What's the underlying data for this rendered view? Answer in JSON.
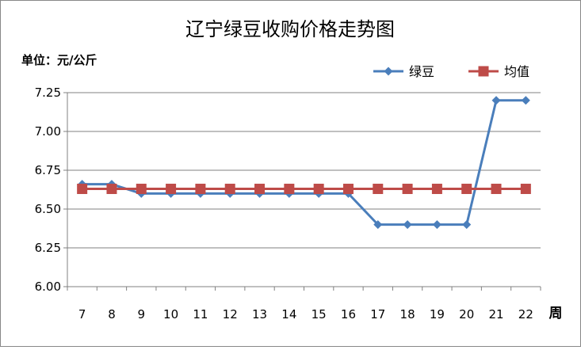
{
  "chart_data": {
    "type": "line",
    "title": "辽宁绿豆收购价格走势图",
    "unit_label": "单位：元/公斤",
    "x_unit_label": "周",
    "categories": [
      "7",
      "8",
      "9",
      "10",
      "11",
      "12",
      "13",
      "14",
      "15",
      "16",
      "17",
      "18",
      "19",
      "20",
      "21",
      "22"
    ],
    "ylim": [
      6.0,
      7.25
    ],
    "yticks": [
      "6.00",
      "6.25",
      "6.50",
      "6.75",
      "7.00",
      "7.25"
    ],
    "grid": true,
    "legend_position": "top-right",
    "series": [
      {
        "name": "绿豆",
        "color": "#4A7EBB",
        "marker": "diamond",
        "values": [
          6.66,
          6.66,
          6.6,
          6.6,
          6.6,
          6.6,
          6.6,
          6.6,
          6.6,
          6.6,
          6.4,
          6.4,
          6.4,
          6.4,
          7.2,
          7.2
        ]
      },
      {
        "name": "均值",
        "color": "#BE4B48",
        "marker": "square",
        "values": [
          6.63,
          6.63,
          6.63,
          6.63,
          6.63,
          6.63,
          6.63,
          6.63,
          6.63,
          6.63,
          6.63,
          6.63,
          6.63,
          6.63,
          6.63,
          6.63
        ]
      }
    ]
  }
}
